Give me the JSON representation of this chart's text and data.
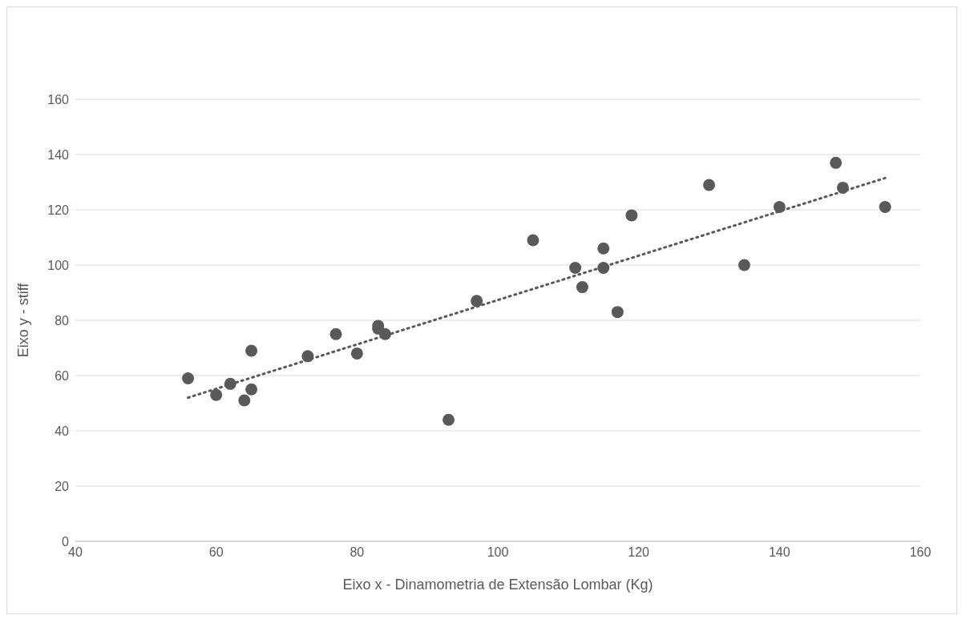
{
  "chart_data": {
    "type": "scatter",
    "xlabel": "Eixo x - Dinamometria de Extensão Lombar (Kg)",
    "ylabel": "Eixo y - stiff",
    "xlim": [
      40,
      160
    ],
    "xticks": [
      40,
      60,
      80,
      100,
      120,
      140,
      160
    ],
    "ylim": [
      0,
      160
    ],
    "yticks": [
      0,
      20,
      40,
      60,
      80,
      100,
      120,
      140,
      160
    ],
    "grid": "y",
    "legend": false,
    "marker": "circle",
    "series": [
      {
        "type": "scatter",
        "color": "#595959",
        "x": [
          56,
          60,
          62,
          64,
          65,
          65,
          73,
          77,
          80,
          83,
          83,
          84,
          93,
          97,
          105,
          111,
          112,
          115,
          115,
          117,
          119,
          130,
          135,
          140,
          148,
          149,
          155
        ],
        "values": [
          59,
          53,
          57,
          51,
          55,
          69,
          67,
          75,
          68,
          78,
          77,
          75,
          44,
          87,
          109,
          99,
          92,
          106,
          99,
          83,
          118,
          129,
          100,
          121,
          137,
          128,
          121
        ]
      },
      {
        "type": "line",
        "color": "#595959",
        "line_style": "dotted",
        "marker": "none",
        "x": [
          56,
          155
        ],
        "values": [
          52,
          131.5
        ]
      }
    ]
  }
}
